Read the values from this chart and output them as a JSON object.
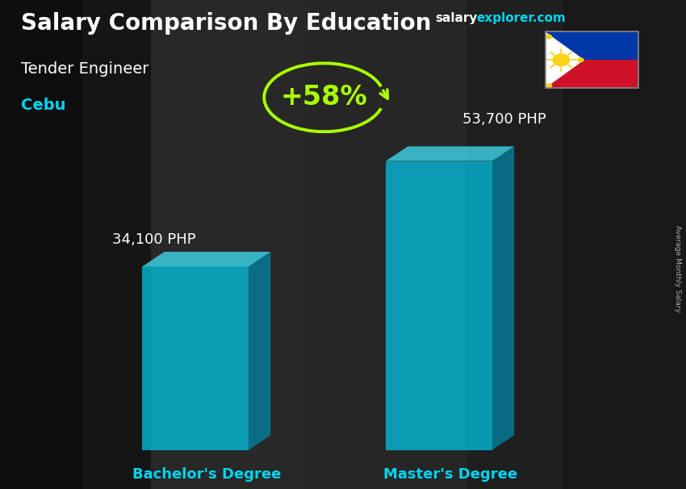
{
  "title": "Salary Comparison By Education",
  "subtitle": "Tender Engineer",
  "location": "Cebu",
  "categories": [
    "Bachelor's Degree",
    "Master's Degree"
  ],
  "values": [
    34100,
    53700
  ],
  "value_labels": [
    "34,100 PHP",
    "53,700 PHP"
  ],
  "pct_change": "+58%",
  "bar_face_color": "#00c8e8",
  "bar_top_color": "#40e8ff",
  "bar_side_color": "#0088aa",
  "bar_alpha": 0.72,
  "bg_color": "#1c1c1c",
  "title_color": "#ffffff",
  "subtitle_color": "#ffffff",
  "location_color": "#00d4f0",
  "label_color": "#ffffff",
  "xlabel_color": "#00d4f0",
  "pct_color": "#aaff00",
  "arrow_color": "#aaff00",
  "site_salary_color": "#ffffff",
  "site_explorer_color": "#00d4f0",
  "right_label": "Average Monthly Salary",
  "flag_blue": "#0038a8",
  "flag_red": "#ce1126",
  "flag_yellow": "#fcd116"
}
